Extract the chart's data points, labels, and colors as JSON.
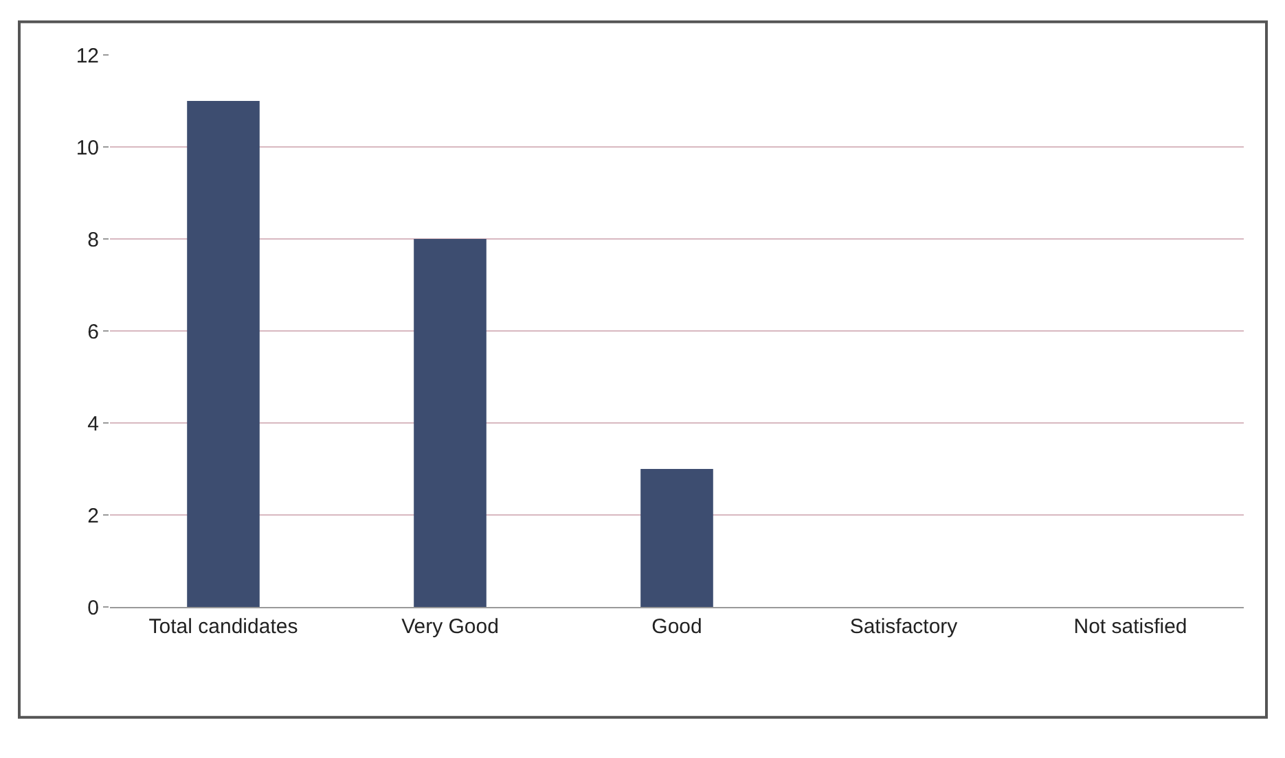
{
  "chart_data": {
    "type": "bar",
    "categories": [
      "Total candidates",
      "Very Good",
      "Good",
      "Satisfactory",
      "Not satisfied"
    ],
    "values": [
      11,
      8,
      3,
      0,
      0
    ],
    "color": "#3d4d70",
    "ylim": [
      0,
      12
    ],
    "yticks": [
      0,
      2,
      4,
      6,
      8,
      10,
      12
    ],
    "grid": "y"
  }
}
